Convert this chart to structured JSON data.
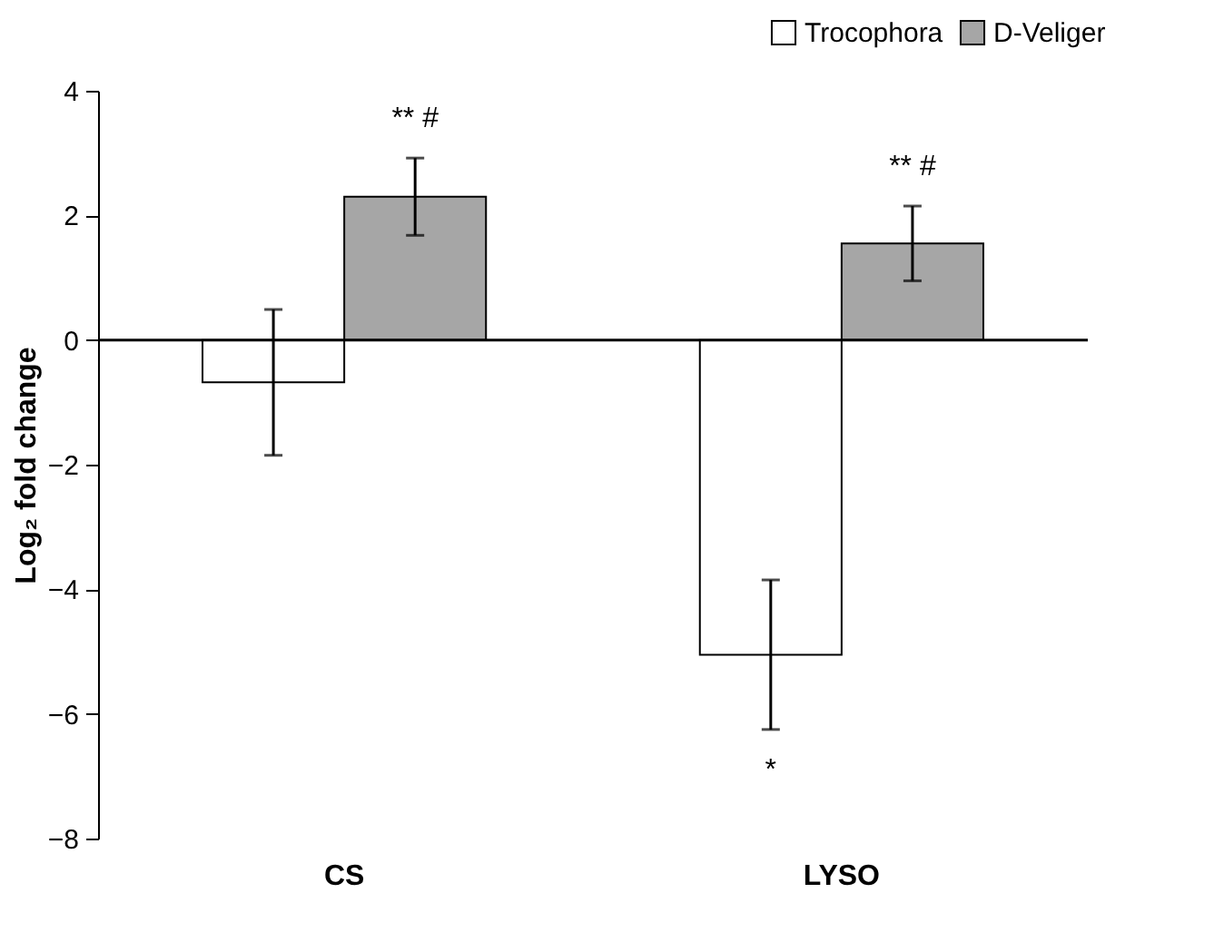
{
  "chart_data": {
    "type": "bar",
    "ylabel": "Log₂ fold change",
    "categories": [
      "CS",
      "LYSO"
    ],
    "series": [
      {
        "name": "Trocophora",
        "color": "#ffffff",
        "values": [
          -0.68,
          -5.05
        ],
        "errors": [
          1.17,
          1.2
        ]
      },
      {
        "name": "D-Veliger",
        "color": "#a6a6a6",
        "values": [
          2.3,
          1.55
        ],
        "errors": [
          0.62,
          0.6
        ]
      }
    ],
    "ref_lines": [
      {
        "axis": "y",
        "value": 0,
        "color": "#000000"
      }
    ],
    "ylim": [
      -8,
      4
    ],
    "yticks": [
      -8,
      -6,
      -4,
      -2,
      0,
      2,
      4
    ],
    "grid": false,
    "legend": "top right",
    "annotations": [
      "** #",
      "** #",
      "*"
    ]
  }
}
